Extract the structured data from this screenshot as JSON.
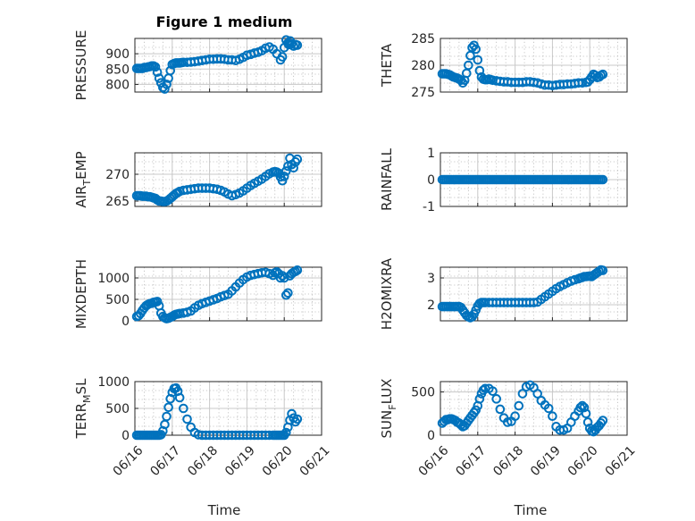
{
  "figure": {
    "title": "Figure 1 medium",
    "xlabel": "Time",
    "marker_color": "#0072BD",
    "xticks": [
      "06/16",
      "06/17",
      "06/18",
      "06/19",
      "06/20",
      "06/21"
    ]
  },
  "chart_data": [
    {
      "type": "scatter",
      "ylabel": "PRESSURE",
      "ylabel_sub": "",
      "ylabel_sub_pos": 0,
      "title": "Figure 1 medium",
      "xlim": [
        0,
        5
      ],
      "ylim": [
        775,
        950
      ],
      "yticks": [
        800,
        850,
        900
      ],
      "grid": true,
      "x": [
        0.05,
        0.1,
        0.15,
        0.2,
        0.25,
        0.3,
        0.35,
        0.4,
        0.45,
        0.5,
        0.55,
        0.6,
        0.65,
        0.7,
        0.75,
        0.8,
        0.85,
        0.9,
        0.95,
        1.0,
        1.05,
        1.1,
        1.15,
        1.2,
        1.25,
        1.3,
        1.4,
        1.5,
        1.6,
        1.7,
        1.8,
        1.9,
        2.0,
        2.1,
        2.2,
        2.3,
        2.4,
        2.5,
        2.6,
        2.7,
        2.8,
        2.9,
        3.0,
        3.1,
        3.2,
        3.3,
        3.4,
        3.5,
        3.6,
        3.7,
        3.8,
        3.9,
        3.95,
        4.0,
        4.05,
        4.1,
        4.12,
        4.16,
        4.2,
        4.25,
        4.3,
        4.35
      ],
      "y": [
        852,
        852,
        852,
        852,
        855,
        855,
        857,
        858,
        860,
        860,
        857,
        840,
        820,
        805,
        790,
        785,
        800,
        820,
        845,
        865,
        868,
        870,
        870,
        870,
        871,
        872,
        872,
        873,
        874,
        876,
        878,
        880,
        882,
        882,
        883,
        883,
        882,
        880,
        880,
        878,
        882,
        888,
        895,
        898,
        902,
        905,
        910,
        918,
        922,
        915,
        900,
        880,
        890,
        920,
        945,
        935,
        930,
        942,
        932,
        925,
        930,
        928
      ]
    },
    {
      "type": "scatter",
      "ylabel": "THETA",
      "ylabel_sub": "",
      "ylabel_sub_pos": 0,
      "xlim": [
        0,
        5
      ],
      "ylim": [
        275,
        285
      ],
      "yticks": [
        275,
        280,
        285
      ],
      "grid": true,
      "x": [
        0.05,
        0.1,
        0.15,
        0.2,
        0.25,
        0.3,
        0.35,
        0.4,
        0.45,
        0.5,
        0.55,
        0.6,
        0.65,
        0.7,
        0.75,
        0.8,
        0.85,
        0.9,
        0.95,
        1.0,
        1.05,
        1.1,
        1.15,
        1.2,
        1.25,
        1.3,
        1.35,
        1.4,
        1.5,
        1.6,
        1.7,
        1.8,
        1.9,
        2.0,
        2.1,
        2.2,
        2.3,
        2.4,
        2.5,
        2.6,
        2.7,
        2.8,
        2.9,
        3.0,
        3.1,
        3.2,
        3.3,
        3.4,
        3.5,
        3.6,
        3.7,
        3.8,
        3.9,
        3.95,
        4.0,
        4.05,
        4.1,
        4.15,
        4.2,
        4.25,
        4.3,
        4.35
      ],
      "y": [
        278.4,
        278.4,
        278.4,
        278.3,
        278.2,
        278.0,
        277.8,
        277.7,
        277.6,
        277.4,
        277.2,
        276.7,
        277.2,
        278.5,
        280.0,
        281.8,
        283.3,
        283.7,
        283.0,
        281.0,
        279.0,
        277.8,
        277.4,
        277.3,
        277.3,
        277.4,
        277.3,
        277.2,
        277.1,
        277.0,
        276.9,
        276.9,
        276.8,
        276.8,
        276.8,
        276.8,
        276.9,
        276.9,
        276.8,
        276.7,
        276.5,
        276.3,
        276.3,
        276.2,
        276.3,
        276.4,
        276.4,
        276.5,
        276.5,
        276.6,
        276.7,
        276.7,
        276.8,
        276.9,
        277.3,
        277.8,
        278.3,
        278.1,
        277.7,
        277.8,
        278.1,
        278.3
      ]
    },
    {
      "type": "scatter",
      "ylabel": "AIR",
      "ylabel_sub": "T",
      "ylabel_sub_pos": 3,
      "ylabel_text": "AIR_TEMP",
      "xlim": [
        0,
        5
      ],
      "ylim": [
        264,
        274
      ],
      "yticks": [
        265,
        270
      ],
      "grid": true,
      "x": [
        0.05,
        0.1,
        0.15,
        0.2,
        0.25,
        0.3,
        0.35,
        0.4,
        0.45,
        0.5,
        0.55,
        0.6,
        0.65,
        0.7,
        0.75,
        0.8,
        0.85,
        0.9,
        0.95,
        1.0,
        1.05,
        1.1,
        1.15,
        1.2,
        1.3,
        1.4,
        1.5,
        1.6,
        1.7,
        1.8,
        1.9,
        2.0,
        2.1,
        2.2,
        2.3,
        2.4,
        2.5,
        2.6,
        2.7,
        2.8,
        2.9,
        3.0,
        3.1,
        3.2,
        3.3,
        3.4,
        3.5,
        3.6,
        3.7,
        3.75,
        3.8,
        3.85,
        3.9,
        3.95,
        4.0,
        4.05,
        4.1,
        4.15,
        4.2,
        4.25,
        4.3,
        4.35
      ],
      "y": [
        266.0,
        266.0,
        266.0,
        265.9,
        265.9,
        265.9,
        265.8,
        265.8,
        265.7,
        265.6,
        265.5,
        265.2,
        265.0,
        265.0,
        264.9,
        264.9,
        265.0,
        265.2,
        265.5,
        265.8,
        266.1,
        266.4,
        266.6,
        266.8,
        267.0,
        267.1,
        267.2,
        267.3,
        267.4,
        267.4,
        267.4,
        267.4,
        267.3,
        267.2,
        267.0,
        266.7,
        266.3,
        266.0,
        266.2,
        266.5,
        266.9,
        267.4,
        267.9,
        268.3,
        268.7,
        269.1,
        269.6,
        270.1,
        270.4,
        270.5,
        270.4,
        270.2,
        269.5,
        268.8,
        269.6,
        270.6,
        271.5,
        273.0,
        271.8,
        271.2,
        272.3,
        272.8
      ]
    },
    {
      "type": "scatter",
      "ylabel": "RAINFALL",
      "ylabel_sub": "",
      "ylabel_sub_pos": 0,
      "xlim": [
        0,
        5
      ],
      "ylim": [
        -1,
        1
      ],
      "yticks": [
        -1,
        0,
        1
      ],
      "grid": true,
      "x": [
        0.05,
        0.1,
        0.15,
        0.2,
        0.25,
        0.3,
        0.35,
        0.4,
        0.45,
        0.5,
        0.55,
        0.6,
        0.65,
        0.7,
        0.75,
        0.8,
        0.85,
        0.9,
        0.95,
        1.0,
        1.05,
        1.1,
        1.15,
        1.2,
        1.25,
        1.3,
        1.35,
        1.4,
        1.45,
        1.5,
        1.55,
        1.6,
        1.65,
        1.7,
        1.75,
        1.8,
        1.85,
        1.9,
        1.95,
        2.0,
        2.05,
        2.1,
        2.15,
        2.2,
        2.25,
        2.3,
        2.35,
        2.4,
        2.45,
        2.5,
        2.55,
        2.6,
        2.65,
        2.7,
        2.75,
        2.8,
        2.85,
        2.9,
        2.95,
        3.0,
        3.05,
        3.1,
        3.15,
        3.2,
        3.25,
        3.3,
        3.35,
        3.4,
        3.45,
        3.5,
        3.55,
        3.6,
        3.65,
        3.7,
        3.75,
        3.8,
        3.85,
        3.9,
        3.95,
        4.0,
        4.05,
        4.1,
        4.15,
        4.2,
        4.25,
        4.3,
        4.35
      ],
      "y": [
        0,
        0,
        0,
        0,
        0,
        0,
        0,
        0,
        0,
        0,
        0,
        0,
        0,
        0,
        0,
        0,
        0,
        0,
        0,
        0,
        0,
        0,
        0,
        0,
        0,
        0,
        0,
        0,
        0,
        0,
        0,
        0,
        0,
        0,
        0,
        0,
        0,
        0,
        0,
        0,
        0,
        0,
        0,
        0,
        0,
        0,
        0,
        0,
        0,
        0,
        0,
        0,
        0,
        0,
        0,
        0,
        0,
        0,
        0,
        0,
        0,
        0,
        0,
        0,
        0,
        0,
        0,
        0,
        0,
        0,
        0,
        0,
        0,
        0,
        0,
        0,
        0,
        0,
        0,
        0,
        0,
        0,
        0,
        0,
        0,
        0,
        0
      ]
    },
    {
      "type": "scatter",
      "ylabel": "MIXDEPTH",
      "ylabel_sub": "",
      "ylabel_sub_pos": 0,
      "xlim": [
        0,
        5
      ],
      "ylim": [
        0,
        1250
      ],
      "yticks": [
        0,
        500,
        1000
      ],
      "grid": true,
      "x": [
        0.05,
        0.1,
        0.15,
        0.2,
        0.25,
        0.3,
        0.35,
        0.4,
        0.45,
        0.5,
        0.55,
        0.6,
        0.65,
        0.7,
        0.75,
        0.8,
        0.85,
        0.9,
        0.95,
        1.0,
        1.05,
        1.1,
        1.15,
        1.2,
        1.3,
        1.4,
        1.5,
        1.6,
        1.7,
        1.8,
        1.9,
        2.0,
        2.1,
        2.2,
        2.3,
        2.4,
        2.5,
        2.6,
        2.7,
        2.8,
        2.9,
        3.0,
        3.1,
        3.2,
        3.3,
        3.4,
        3.5,
        3.6,
        3.7,
        3.75,
        3.8,
        3.85,
        3.9,
        3.95,
        4.0,
        4.05,
        4.1,
        4.15,
        4.2,
        4.25,
        4.3,
        4.35
      ],
      "y": [
        100,
        120,
        170,
        240,
        300,
        350,
        380,
        400,
        410,
        430,
        440,
        450,
        350,
        180,
        100,
        70,
        50,
        60,
        80,
        100,
        130,
        150,
        160,
        170,
        180,
        200,
        230,
        300,
        360,
        400,
        430,
        460,
        490,
        520,
        560,
        590,
        620,
        700,
        790,
        880,
        960,
        1020,
        1060,
        1080,
        1100,
        1120,
        1130,
        1100,
        1060,
        1120,
        1140,
        1100,
        1000,
        1050,
        1000,
        600,
        650,
        1050,
        1100,
        1130,
        1150,
        1180
      ]
    },
    {
      "type": "scatter",
      "ylabel": "H2OMIXRA",
      "ylabel_sub": "",
      "ylabel_sub_pos": 0,
      "xlim": [
        0,
        5
      ],
      "ylim": [
        1.4,
        3.4
      ],
      "yticks": [
        2,
        3
      ],
      "grid": true,
      "x": [
        0.05,
        0.1,
        0.15,
        0.2,
        0.25,
        0.3,
        0.35,
        0.4,
        0.45,
        0.5,
        0.55,
        0.6,
        0.65,
        0.7,
        0.75,
        0.8,
        0.85,
        0.9,
        0.95,
        1.0,
        1.05,
        1.1,
        1.15,
        1.2,
        1.3,
        1.4,
        1.5,
        1.6,
        1.7,
        1.8,
        1.9,
        2.0,
        2.1,
        2.2,
        2.3,
        2.4,
        2.5,
        2.6,
        2.7,
        2.8,
        2.9,
        3.0,
        3.1,
        3.2,
        3.3,
        3.4,
        3.5,
        3.6,
        3.7,
        3.75,
        3.8,
        3.85,
        3.9,
        3.95,
        4.0,
        4.05,
        4.1,
        4.15,
        4.2,
        4.25,
        4.3,
        4.35
      ],
      "y": [
        1.93,
        1.93,
        1.93,
        1.93,
        1.93,
        1.93,
        1.93,
        1.93,
        1.93,
        1.93,
        1.9,
        1.8,
        1.7,
        1.6,
        1.55,
        1.52,
        1.55,
        1.65,
        1.8,
        1.95,
        2.05,
        2.08,
        2.08,
        2.08,
        2.08,
        2.08,
        2.08,
        2.08,
        2.08,
        2.08,
        2.08,
        2.08,
        2.08,
        2.08,
        2.08,
        2.08,
        2.08,
        2.1,
        2.2,
        2.3,
        2.4,
        2.5,
        2.6,
        2.68,
        2.75,
        2.82,
        2.88,
        2.93,
        2.97,
        3.0,
        3.02,
        3.05,
        3.05,
        3.06,
        3.07,
        3.05,
        3.1,
        3.15,
        3.2,
        3.25,
        3.3,
        3.28
      ]
    },
    {
      "type": "scatter",
      "ylabel": "TERR",
      "ylabel_sub": "M",
      "ylabel_sub_pos": 4,
      "ylabel_text": "TERR_MSL",
      "xlim": [
        0,
        5
      ],
      "ylim": [
        0,
        1000
      ],
      "yticks": [
        0,
        500,
        1000
      ],
      "grid": true,
      "x": [
        0.05,
        0.1,
        0.15,
        0.2,
        0.25,
        0.3,
        0.35,
        0.4,
        0.45,
        0.5,
        0.55,
        0.6,
        0.65,
        0.7,
        0.75,
        0.8,
        0.85,
        0.9,
        0.95,
        1.0,
        1.05,
        1.1,
        1.15,
        1.2,
        1.3,
        1.4,
        1.5,
        1.6,
        1.7,
        1.8,
        1.9,
        2.0,
        2.1,
        2.2,
        2.3,
        2.4,
        2.5,
        2.6,
        2.7,
        2.8,
        2.9,
        3.0,
        3.1,
        3.2,
        3.3,
        3.4,
        3.5,
        3.6,
        3.7,
        3.75,
        3.8,
        3.85,
        3.9,
        3.95,
        4.0,
        4.05,
        4.1,
        4.15,
        4.2,
        4.25,
        4.3,
        4.35
      ],
      "y": [
        0,
        0,
        0,
        0,
        0,
        0,
        0,
        0,
        0,
        0,
        0,
        0,
        0,
        10,
        80,
        200,
        350,
        520,
        680,
        800,
        870,
        880,
        820,
        700,
        500,
        300,
        150,
        50,
        10,
        0,
        0,
        0,
        0,
        0,
        0,
        0,
        0,
        0,
        0,
        0,
        0,
        0,
        0,
        0,
        0,
        0,
        0,
        0,
        0,
        0,
        0,
        0,
        0,
        0,
        0,
        50,
        150,
        280,
        400,
        320,
        250,
        300
      ]
    },
    {
      "type": "scatter",
      "ylabel": "SUN",
      "ylabel_sub": "F",
      "ylabel_sub_pos": 3,
      "ylabel_text": "SUN_FLUX",
      "xlim": [
        0,
        5
      ],
      "ylim": [
        0,
        620
      ],
      "yticks": [
        0,
        500
      ],
      "grid": true,
      "x": [
        0.05,
        0.1,
        0.15,
        0.2,
        0.25,
        0.3,
        0.35,
        0.4,
        0.45,
        0.5,
        0.55,
        0.6,
        0.65,
        0.7,
        0.75,
        0.8,
        0.85,
        0.9,
        0.95,
        1.0,
        1.05,
        1.1,
        1.15,
        1.2,
        1.3,
        1.4,
        1.5,
        1.6,
        1.7,
        1.8,
        1.9,
        2.0,
        2.1,
        2.2,
        2.3,
        2.4,
        2.5,
        2.6,
        2.7,
        2.8,
        2.9,
        3.0,
        3.1,
        3.2,
        3.3,
        3.4,
        3.5,
        3.6,
        3.7,
        3.75,
        3.8,
        3.85,
        3.9,
        3.95,
        4.0,
        4.05,
        4.1,
        4.15,
        4.2,
        4.25,
        4.3,
        4.35
      ],
      "y": [
        140,
        160,
        180,
        180,
        190,
        190,
        180,
        170,
        150,
        140,
        120,
        100,
        110,
        140,
        170,
        200,
        230,
        260,
        290,
        340,
        420,
        480,
        520,
        540,
        540,
        510,
        420,
        300,
        200,
        150,
        160,
        220,
        340,
        480,
        560,
        580,
        550,
        480,
        400,
        350,
        310,
        220,
        100,
        60,
        60,
        80,
        150,
        220,
        280,
        320,
        340,
        320,
        250,
        150,
        80,
        50,
        40,
        60,
        90,
        110,
        140,
        170
      ]
    }
  ]
}
